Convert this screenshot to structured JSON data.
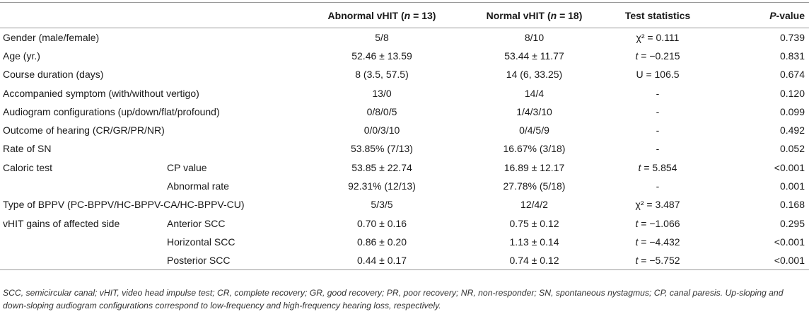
{
  "header": {
    "col_abnormal_prefix": "Abnormal vHIT (",
    "col_abnormal_n": "n",
    "col_abnormal_suffix": " = 13)",
    "col_normal_prefix": "Normal vHIT (",
    "col_normal_n": "n",
    "col_normal_suffix": " = 18)",
    "col_test": "Test statistics",
    "col_p_italic": "P",
    "col_p_suffix": "-value"
  },
  "rows": [
    {
      "label": "Gender (male/female)",
      "sub": "",
      "abnormal": "5/8",
      "normal": "8/10",
      "test": "χ² = 0.111",
      "p": "0.739"
    },
    {
      "label": "Age (yr.)",
      "sub": "",
      "abnormal": "52.46 ± 13.59",
      "normal": "53.44 ± 11.77",
      "test": "t = −0.215",
      "p": "0.831"
    },
    {
      "label": "Course duration (days)",
      "sub": "",
      "abnormal": "8 (3.5, 57.5)",
      "normal": "14 (6, 33.25)",
      "test": "U = 106.5",
      "p": "0.674"
    },
    {
      "label": "Accompanied symptom (with/without vertigo)",
      "sub": "",
      "abnormal": "13/0",
      "normal": "14/4",
      "test": "-",
      "p": "0.120"
    },
    {
      "label": "Audiogram configurations (up/down/flat/profound)",
      "sub": "",
      "abnormal": "0/8/0/5",
      "normal": "1/4/3/10",
      "test": "-",
      "p": "0.099"
    },
    {
      "label": "Outcome of hearing (CR/GR/PR/NR)",
      "sub": "",
      "abnormal": "0/0/3/10",
      "normal": "0/4/5/9",
      "test": "-",
      "p": "0.492"
    },
    {
      "label": "Rate of SN",
      "sub": "",
      "abnormal": "53.85% (7/13)",
      "normal": "16.67% (3/18)",
      "test": "-",
      "p": "0.052"
    },
    {
      "label": "Caloric test",
      "sub": "CP value",
      "abnormal": "53.85 ± 22.74",
      "normal": "16.89 ± 12.17",
      "test": "t = 5.854",
      "p": "<0.001"
    },
    {
      "label": "",
      "sub": "Abnormal rate",
      "abnormal": "92.31% (12/13)",
      "normal": "27.78% (5/18)",
      "test": "-",
      "p": "0.001"
    },
    {
      "label": "Type of BPPV (PC-BPPV/HC-BPPV-CA/HC-BPPV-CU)",
      "sub": "",
      "abnormal": "5/3/5",
      "normal": "12/4/2",
      "test": "χ² = 3.487",
      "p": "0.168"
    },
    {
      "label": "vHIT gains of affected side",
      "sub": "Anterior SCC",
      "abnormal": "0.70 ± 0.16",
      "normal": "0.75 ± 0.12",
      "test": "t = −1.066",
      "p": "0.295"
    },
    {
      "label": "",
      "sub": "Horizontal SCC",
      "abnormal": "0.86 ± 0.20",
      "normal": "1.13 ± 0.14",
      "test": "t = −4.432",
      "p": "<0.001"
    },
    {
      "label": "",
      "sub": "Posterior SCC",
      "abnormal": "0.44 ± 0.17",
      "normal": "0.74 ± 0.12",
      "test": "t = −5.752",
      "p": "<0.001"
    }
  ],
  "footnote": "SCC, semicircular canal; vHIT, video head impulse test; CR, complete recovery; GR, good recovery; PR, poor recovery; NR, non-responder; SN, spontaneous nystagmus; CP, canal paresis. Up-sloping and down-sloping audiogram configurations correspond to low-frequency and high-frequency hearing loss, respectively."
}
